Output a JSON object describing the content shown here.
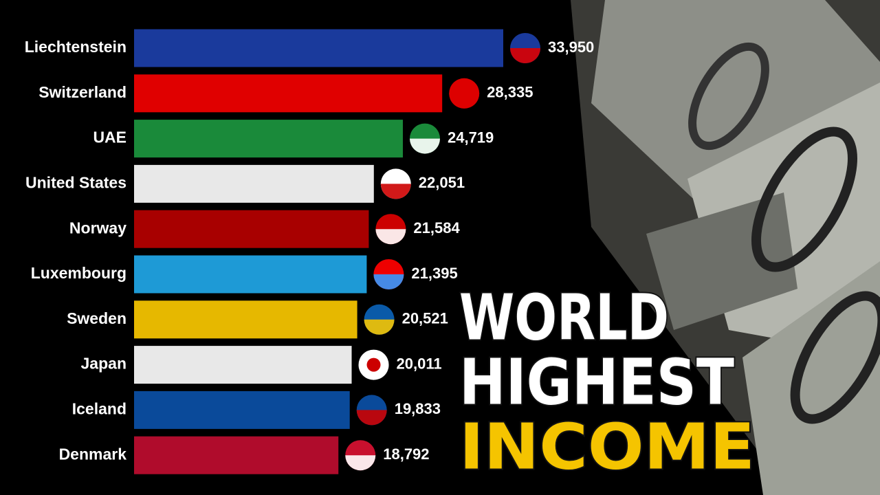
{
  "chart_data": {
    "type": "bar",
    "title_lines": [
      "WORLD",
      "HIGHEST",
      "INCOME"
    ],
    "title_colors": [
      "#ffffff",
      "#ffffff",
      "#f5c400"
    ],
    "categories": [
      "Liechtenstein",
      "Switzerland",
      "UAE",
      "United States",
      "Norway",
      "Luxembourg",
      "Sweden",
      "Japan",
      "Iceland",
      "Denmark"
    ],
    "values": [
      33950,
      28335,
      24719,
      22051,
      21584,
      21395,
      20521,
      20011,
      19833,
      18792
    ],
    "value_labels": [
      "33,950",
      "28,335",
      "24,719",
      "22,051",
      "21,584",
      "21,395",
      "20,521",
      "20,011",
      "19,833",
      "18,792"
    ],
    "colors": [
      "#1a3a9c",
      "#e00000",
      "#1a8a3a",
      "#e8e8e8",
      "#a80000",
      "#1e9ad6",
      "#e6b800",
      "#e8e8e8",
      "#0a4a9a",
      "#b00c2c"
    ]
  }
}
